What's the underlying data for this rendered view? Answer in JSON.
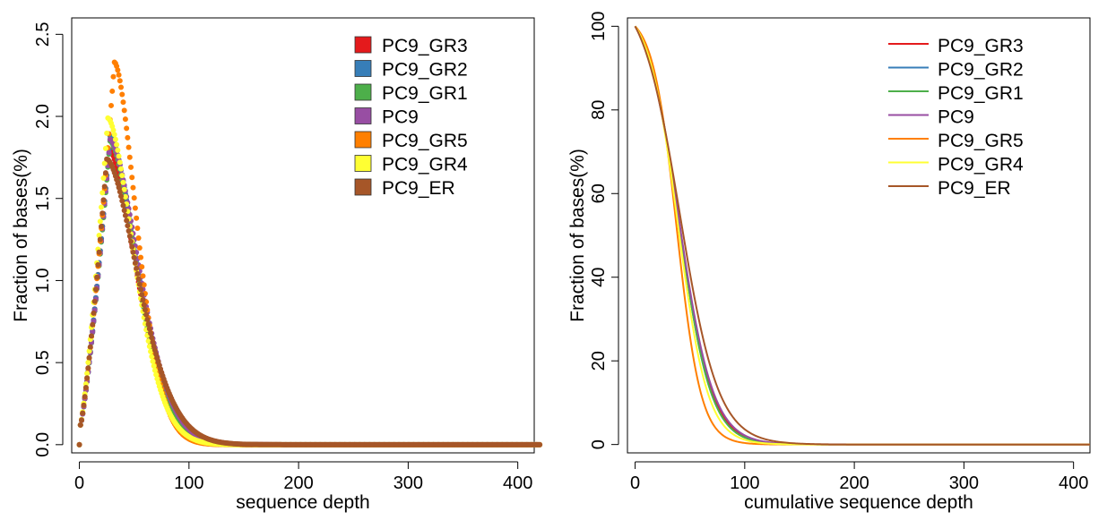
{
  "chart_data": [
    {
      "type": "scatter",
      "xlabel": "sequence depth",
      "ylabel": "Fraction of bases(%)",
      "xlim": [
        -7,
        415
      ],
      "ylim": [
        -0.05,
        2.6
      ],
      "x_ticks": [
        "0",
        "100",
        "200",
        "300",
        "400"
      ],
      "x_tick_values": [
        0,
        100,
        200,
        300,
        400
      ],
      "y_ticks": [
        "0.0",
        "0.5",
        "1.0",
        "1.5",
        "2.0",
        "2.5"
      ],
      "y_tick_values": [
        0,
        0.5,
        1.0,
        1.5,
        2.0,
        2.5
      ],
      "grid": false,
      "legend_position": "top-right",
      "legend_marker": "filled-square",
      "series": [
        {
          "name": "PC9_GR3",
          "color": "#E41A1C",
          "peak_x": 27,
          "peak_y": 1.8,
          "sigma_left": 12,
          "sigma_right": 30
        },
        {
          "name": "PC9_GR2",
          "color": "#377EB8",
          "peak_x": 28,
          "peak_y": 1.88,
          "sigma_left": 12,
          "sigma_right": 29
        },
        {
          "name": "PC9_GR1",
          "color": "#4DAF4A",
          "peak_x": 28,
          "peak_y": 1.85,
          "sigma_left": 12,
          "sigma_right": 29
        },
        {
          "name": "PC9",
          "color": "#984EA3",
          "peak_x": 28,
          "peak_y": 1.86,
          "sigma_left": 12,
          "sigma_right": 31
        },
        {
          "name": "PC9_GR5",
          "color": "#FF7F00",
          "peak_x": 32,
          "peak_y": 2.33,
          "sigma_left": 13,
          "sigma_right": 24
        },
        {
          "name": "PC9_GR4",
          "color": "#FFFF33",
          "peak_x": 26,
          "peak_y": 1.99,
          "sigma_left": 12,
          "sigma_right": 28
        },
        {
          "name": "PC9_ER",
          "color": "#A65628",
          "peak_x": 25,
          "peak_y": 1.74,
          "sigma_left": 11,
          "sigma_right": 34
        }
      ]
    },
    {
      "type": "line",
      "xlabel": "cumulative sequence depth",
      "ylabel": "Fraction of bases(%)",
      "xlim": [
        -7,
        415
      ],
      "ylim": [
        -2,
        102
      ],
      "x_ticks": [
        "0",
        "100",
        "200",
        "300",
        "400"
      ],
      "x_tick_values": [
        0,
        100,
        200,
        300,
        400
      ],
      "y_ticks": [
        "0",
        "20",
        "40",
        "60",
        "80",
        "100"
      ],
      "y_tick_values": [
        0,
        20,
        40,
        60,
        80,
        100
      ],
      "grid": false,
      "legend_position": "top-right",
      "legend_marker": "line",
      "series": [
        {
          "name": "PC9_GR3",
          "color": "#E41A1C",
          "x50": 40,
          "k": 15.0
        },
        {
          "name": "PC9_GR2",
          "color": "#377EB8",
          "x50": 40,
          "k": 14.5
        },
        {
          "name": "PC9_GR1",
          "color": "#4DAF4A",
          "x50": 40,
          "k": 14.5
        },
        {
          "name": "PC9",
          "color": "#984EA3",
          "x50": 40,
          "k": 15.5
        },
        {
          "name": "PC9_GR5",
          "color": "#FF7F00",
          "x50": 38,
          "k": 11.0
        },
        {
          "name": "PC9_GR4",
          "color": "#FFFF33",
          "x50": 39,
          "k": 13.5
        },
        {
          "name": "PC9_ER",
          "color": "#A65628",
          "x50": 41,
          "k": 17.5
        }
      ]
    }
  ]
}
